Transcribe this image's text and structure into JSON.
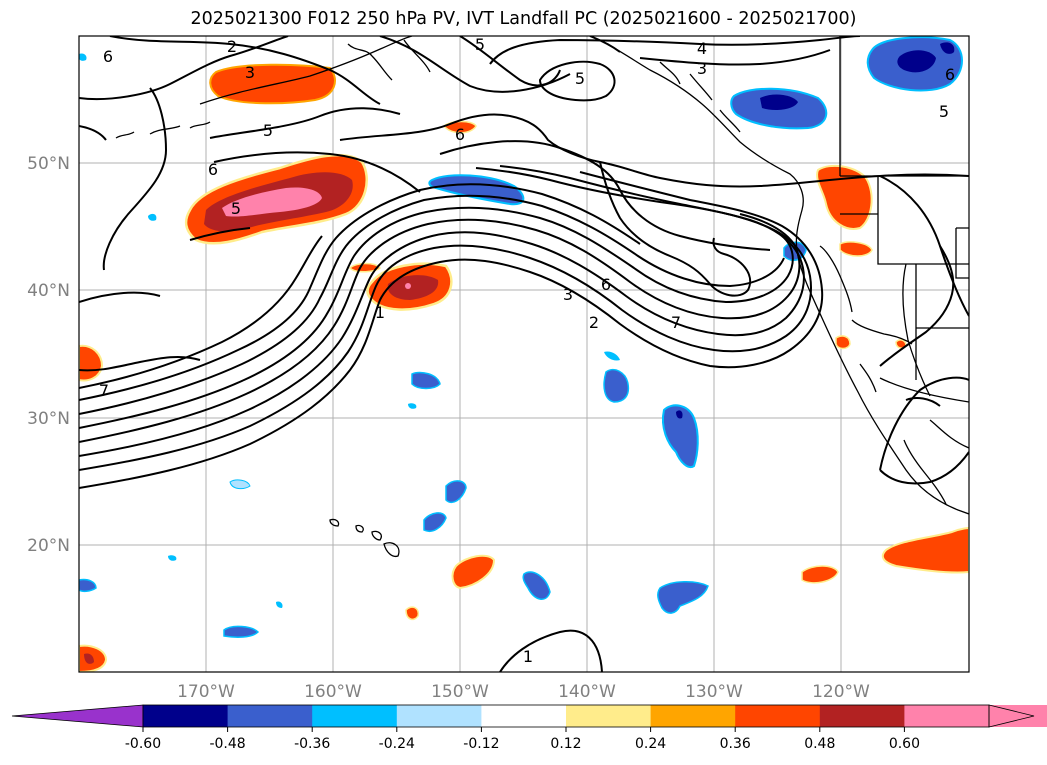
{
  "title": "2025021300 F012 250 hPa PV, IVT Landfall PC (2025021600 - 2025021700)",
  "latitudes": [
    "50°N",
    "40°N",
    "30°N",
    "20°N"
  ],
  "longitudes": [
    "170°W",
    "160°W",
    "150°W",
    "140°W",
    "130°W",
    "120°W"
  ],
  "contour_labels": [
    "6",
    "2",
    "3",
    "5",
    "5",
    "4",
    "3",
    "5",
    "6",
    "6",
    "5",
    "6",
    "5",
    "1",
    "7",
    "3",
    "6",
    "2",
    "7",
    "1"
  ],
  "colorbar": {
    "ticks": [
      "-0.60",
      "-0.48",
      "-0.36",
      "-0.24",
      "-0.12",
      "0.12",
      "0.24",
      "0.36",
      "0.48",
      "0.60"
    ],
    "colors": [
      "#9932cc",
      "#00008b",
      "#3a5fcd",
      "#00bfff",
      "#b0e2ff",
      "#ffffff",
      "#ffec8b",
      "#ffa500",
      "#ff4500",
      "#b22222",
      "#ff82ab",
      "#ff82ab"
    ]
  }
}
